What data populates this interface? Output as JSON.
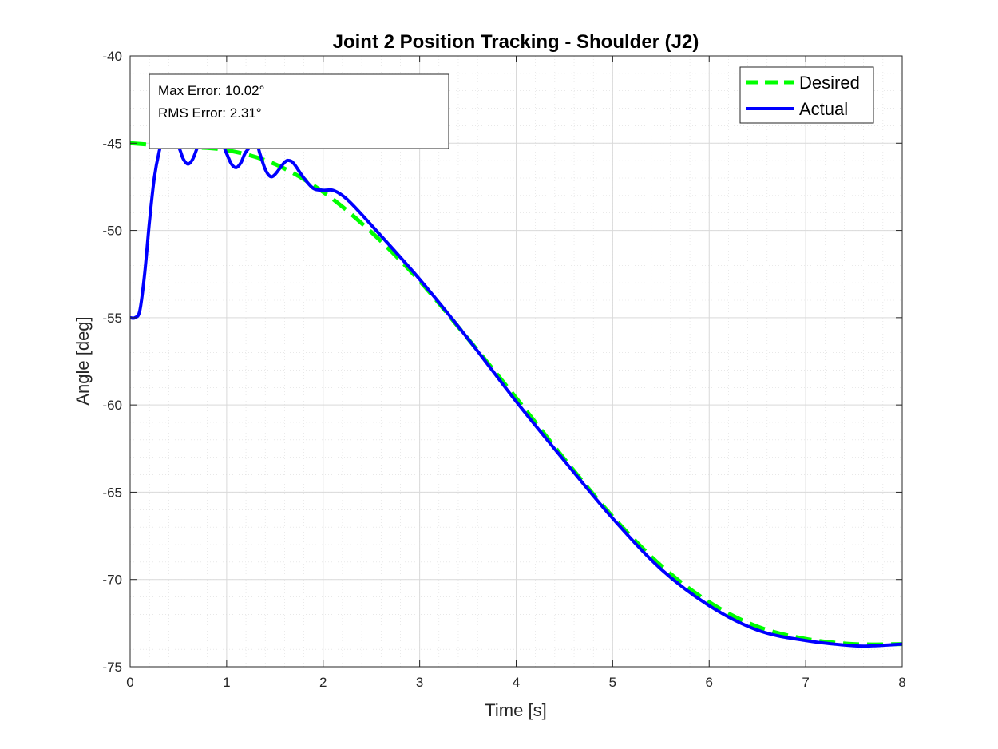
{
  "chart_data": {
    "type": "line",
    "title": "Joint 2 Position Tracking - Shoulder (J2)",
    "xlabel": "Time [s]",
    "ylabel": "Angle [deg]",
    "xlim": [
      0,
      8
    ],
    "ylim": [
      -75,
      -40
    ],
    "xticks": [
      0,
      1,
      2,
      3,
      4,
      5,
      6,
      7,
      8
    ],
    "yticks": [
      -75,
      -70,
      -65,
      -60,
      -55,
      -50,
      -45,
      -40
    ],
    "grid": true,
    "minor_grid": true,
    "legend_position": "top-right",
    "annotation": [
      "Max Error: 10.02°",
      "RMS Error: 2.31°"
    ],
    "series": [
      {
        "name": "Desired",
        "color": "#00ff00",
        "style": "dashed",
        "x": [
          0,
          0.5,
          1,
          1.5,
          2,
          2.5,
          3,
          3.5,
          4,
          4.5,
          5,
          5.5,
          6,
          6.5,
          7,
          7.5,
          8
        ],
        "y": [
          -45,
          -45.2,
          -45.4,
          -46.2,
          -47.8,
          -50.1,
          -52.9,
          -56.2,
          -59.6,
          -63.1,
          -66.4,
          -69.2,
          -71.3,
          -72.7,
          -73.4,
          -73.7,
          -73.7
        ]
      },
      {
        "name": "Actual",
        "color": "#0000ff",
        "style": "solid",
        "x": [
          0,
          0.05,
          0.1,
          0.15,
          0.2,
          0.25,
          0.3,
          0.35,
          0.4,
          0.5,
          0.55,
          0.6,
          0.65,
          0.7,
          0.75,
          0.85,
          0.95,
          1.0,
          1.05,
          1.1,
          1.15,
          1.2,
          1.3,
          1.35,
          1.4,
          1.45,
          1.5,
          1.6,
          1.65,
          1.7,
          1.8,
          1.9,
          2.0,
          2.1,
          2.2,
          2.3,
          2.5,
          3,
          3.5,
          4,
          4.5,
          5,
          5.5,
          6,
          6.5,
          7,
          7.5,
          7.7,
          8
        ],
        "y": [
          -55,
          -55,
          -54.6,
          -52.5,
          -49.5,
          -47,
          -45.5,
          -44.6,
          -44.5,
          -45.2,
          -45.9,
          -46.2,
          -45.9,
          -45.2,
          -44.7,
          -44.5,
          -45.0,
          -45.6,
          -46.2,
          -46.4,
          -46.1,
          -45.5,
          -45.0,
          -45.7,
          -46.5,
          -46.9,
          -46.8,
          -46.1,
          -46.0,
          -46.2,
          -47.0,
          -47.6,
          -47.7,
          -47.7,
          -48.0,
          -48.5,
          -49.7,
          -52.8,
          -56.2,
          -59.8,
          -63.2,
          -66.5,
          -69.4,
          -71.5,
          -72.9,
          -73.5,
          -73.8,
          -73.8,
          -73.7
        ]
      }
    ]
  }
}
